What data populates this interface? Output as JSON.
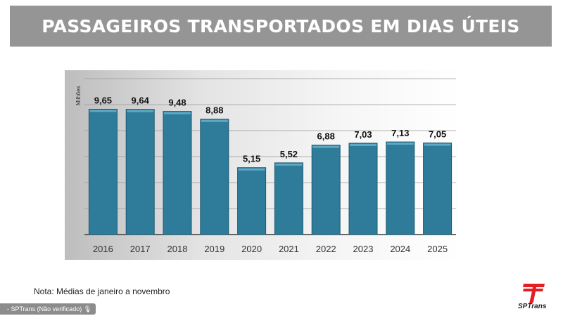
{
  "title": "PASSAGEIROS TRANSPORTADOS EM DIAS ÚTEIS",
  "note": "Nota: Médias de janeiro a novembro",
  "source_chip": "- SPTrans (Não verificado)",
  "logo_text": "SPTrans",
  "colors": {
    "bar": "#2e7c9a",
    "bar_edge": "#1d5a72",
    "title_bg": "#959595",
    "logo_red": "#e31e24"
  },
  "chart_data": {
    "type": "bar",
    "title": "",
    "xlabel": "",
    "ylabel": "Milhões",
    "categories": [
      "2016",
      "2017",
      "2018",
      "2019",
      "2020",
      "2021",
      "2022",
      "2023",
      "2024",
      "2025"
    ],
    "values": [
      9.65,
      9.64,
      9.48,
      8.88,
      5.15,
      5.52,
      6.88,
      7.03,
      7.13,
      7.05
    ],
    "data_labels": [
      "9,65",
      "9,64",
      "9,48",
      "8,88",
      "5,15",
      "5,52",
      "6,88",
      "7,03",
      "7,13",
      "7,05"
    ],
    "ylim": [
      0,
      12
    ],
    "grid": true
  }
}
